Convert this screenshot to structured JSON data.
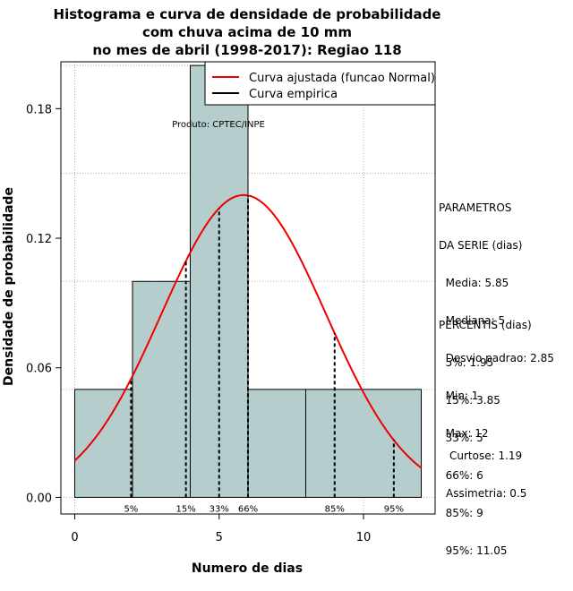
{
  "chart_data": {
    "type": "bar",
    "title": [
      "Histograma e curva de densidade de probabilidade",
      "com chuva acima de 10 mm",
      "no mes de abril (1998-2017): Regiao 118"
    ],
    "xlabel": "Numero de dias",
    "ylabel": "Densidade de probabilidade",
    "xlim": [
      -0.48,
      12.48
    ],
    "ylim": [
      -0.0077,
      0.2017
    ],
    "xticks": [
      {
        "value": 0,
        "label": "0"
      },
      {
        "value": 5,
        "label": "5"
      },
      {
        "value": 10,
        "label": "10"
      }
    ],
    "yticks": [
      {
        "value": 0,
        "label": "0.00"
      },
      {
        "value": 0.06,
        "label": "0.06"
      },
      {
        "value": 0.12,
        "label": "0.12"
      },
      {
        "value": 0.18,
        "label": "0.18"
      }
    ],
    "grid_x": [
      0,
      5,
      10
    ],
    "grid_y": [
      0,
      0.05,
      0.1,
      0.15,
      0.2
    ],
    "bins": [
      {
        "start": 0,
        "end": 2,
        "density": 0.05
      },
      {
        "start": 2,
        "end": 4,
        "density": 0.1
      },
      {
        "start": 4,
        "end": 6,
        "density": 0.2
      },
      {
        "start": 6,
        "end": 8,
        "density": 0.05
      },
      {
        "start": 8,
        "end": 12,
        "density": 0.05
      }
    ],
    "bar_color": "#b5cdcc",
    "normal_curve": {
      "mean": 5.85,
      "sd": 2.85,
      "x_from": 0,
      "x_to": 12,
      "color": "#ee0000"
    },
    "percentile_lines": [
      {
        "value": 1.95,
        "label": "5%"
      },
      {
        "value": 3.85,
        "label": "15%"
      },
      {
        "value": 5,
        "label": "33%"
      },
      {
        "value": 6,
        "label": "66%"
      },
      {
        "value": 9,
        "label": "85%"
      },
      {
        "value": 11.05,
        "label": "95%"
      }
    ],
    "legend": {
      "position": "top-right",
      "entries": [
        {
          "label": "Curva ajustada (funcao Normal)",
          "color": "#ee0000"
        },
        {
          "label": "Curva empirica",
          "color": "#000000"
        }
      ]
    },
    "annotation": "Produto: CPTEC/INPE"
  },
  "side_panel": {
    "parametros": [
      "PARAMETROS",
      "DA SERIE (dias)",
      "  Media: 5.85",
      "  Mediana: 5",
      "  Desvio padrao: 2.85",
      "  Min: 1",
      "  Max: 12"
    ],
    "percentis": [
      "PERCENTIS (dias)",
      "  5%: 1.95",
      "  15%: 3.85",
      "  33%: 5",
      "  66%: 6",
      "  85%: 9",
      "  95%: 11.05"
    ],
    "curtose": "Curtose: 1.19",
    "assimetria": "Assimetria: 0.5"
  }
}
